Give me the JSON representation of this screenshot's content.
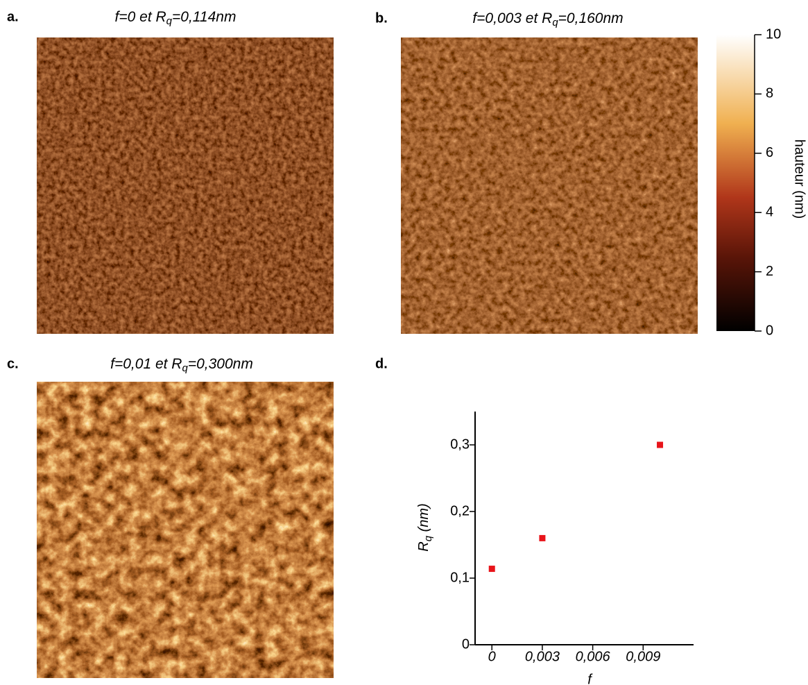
{
  "panels": [
    {
      "label": "a.",
      "title": {
        "prefix": "f=0 et R",
        "sub": "q",
        "suffix": "=0,114nm"
      }
    },
    {
      "label": "b.",
      "title": {
        "prefix": "f=0,003 et R",
        "sub": "q",
        "suffix": "=0,160nm"
      }
    },
    {
      "label": "c.",
      "title": {
        "prefix": "f=0,01 et R",
        "sub": "q",
        "suffix": "=0,300nm"
      }
    },
    {
      "label": "d."
    }
  ],
  "colorbar": {
    "label": "hauteur (nm)",
    "ylim": [
      0,
      10
    ],
    "yticks": [
      0,
      2,
      4,
      6,
      8,
      10
    ]
  },
  "chart_data": {
    "type": "scatter",
    "x": [
      0,
      0.003,
      0.01
    ],
    "values": [
      0.114,
      0.16,
      0.3
    ],
    "color": "#e8141a",
    "xlim": [
      -0.001,
      0.012
    ],
    "ylim": [
      0,
      0.35
    ],
    "xticks": [
      0,
      {
        "value": 0.003,
        "label": "0,003"
      },
      {
        "value": 0.006,
        "label": "0,006"
      },
      {
        "value": 0.009,
        "label": "0,009"
      }
    ],
    "yticks": [
      0,
      {
        "value": 0.1,
        "label": "0,1"
      },
      {
        "value": 0.2,
        "label": "0,2"
      },
      {
        "value": 0.3,
        "label": "0,3"
      }
    ],
    "xlabel": "f",
    "ylabel": {
      "prefix": "R",
      "sub": "q",
      "suffix": " (nm)"
    }
  }
}
